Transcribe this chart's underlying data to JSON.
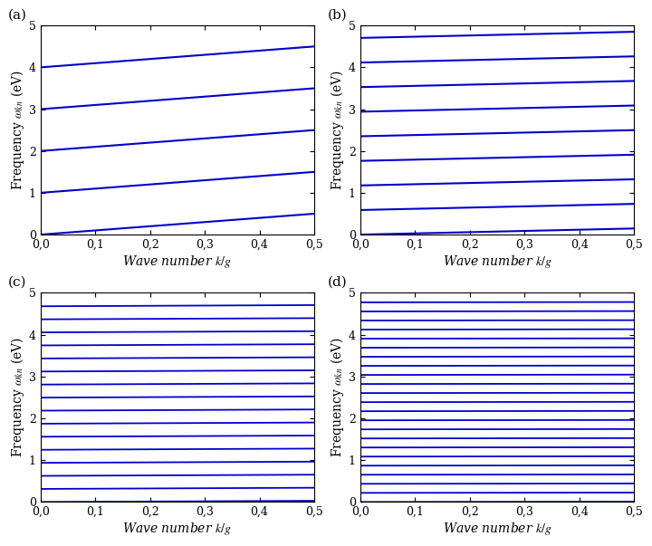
{
  "panels": [
    {
      "label": "(a)",
      "n_range": [
        -5,
        6
      ],
      "scale": 1.0,
      "disp": 1.0,
      "lw": 1.5
    },
    {
      "label": "(b)",
      "n_range": [
        -8,
        9
      ],
      "scale": 0.588,
      "disp": 0.5,
      "lw": 1.5
    },
    {
      "label": "(c)",
      "n_range": [
        -15,
        16
      ],
      "scale": 0.312,
      "disp": 0.18,
      "lw": 1.3
    },
    {
      "label": "(d)",
      "n_range": [
        -22,
        23
      ],
      "scale": 0.217,
      "disp": 0.07,
      "lw": 1.3
    }
  ],
  "line_color": "#0000CC",
  "xlim": [
    0.0,
    0.5
  ],
  "ylim": [
    0.0,
    5.0
  ],
  "xticks": [
    0.0,
    0.1,
    0.2,
    0.3,
    0.4,
    0.5
  ],
  "yticks": [
    0,
    1,
    2,
    3,
    4,
    5
  ],
  "xlabel": "Wave number $k/g$",
  "ylabel": "Frequency $\\omega_{kn}$ (eV)",
  "figsize": [
    7.2,
    6.03
  ],
  "dpi": 100,
  "label_fontsize": 11,
  "axis_fontsize": 10,
  "tick_fontsize": 9
}
